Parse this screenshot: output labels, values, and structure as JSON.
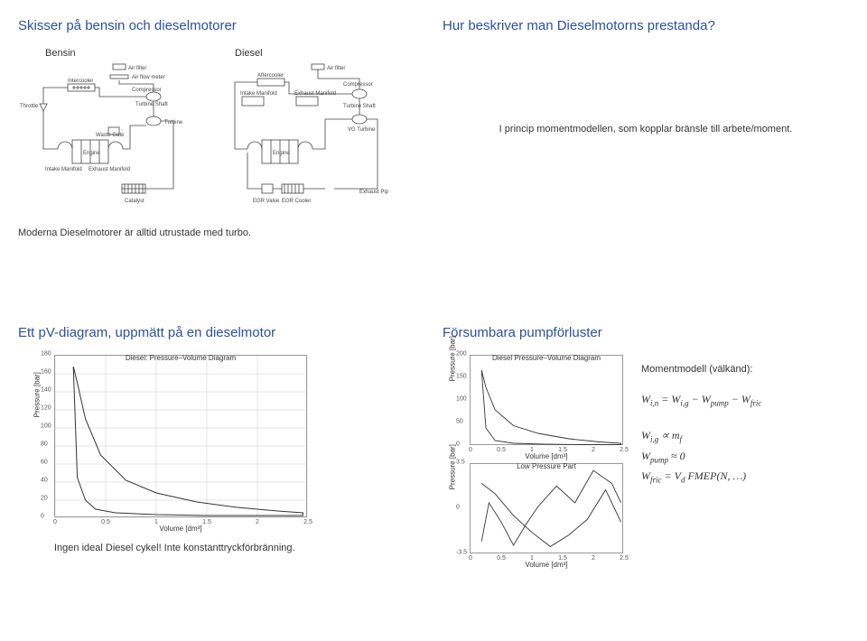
{
  "q1": {
    "title": "Skisser på bensin och dieselmotorer",
    "bensin_label": "Bensin",
    "diesel_label": "Diesel",
    "b": {
      "air_filter": "Air filter",
      "air_flow_meter": "Air flow meter",
      "intercooler": "Intercooler",
      "compressor": "Compressor",
      "throttle": "Throttle",
      "turbine_shaft": "Turbine Shaft",
      "turbine": "Turbine",
      "waste_gate": "Waste Gate",
      "engine": "Engine",
      "intake_manifold": "Intake Manifold",
      "exhaust_manifold": "Exhaust Manifold",
      "catalyst": "Catalyst"
    },
    "d": {
      "air_filter": "Air filter",
      "aftercooler": "Aftercooler",
      "compressor": "Compressor",
      "intake_manifold": "Intake Manifold",
      "exhaust_manifold": "Exhaust Manifold",
      "turbine_shaft": "Turbine Shaft",
      "vg_turbine": "VG Turbine",
      "engine": "Engine",
      "egr_valve": "EGR Valve",
      "egr_cooler": "EGR Cooler",
      "exhaust_pipe": "Exhaust Pipe"
    },
    "caption": "Moderna Dieselmotorer är alltid utrustade med turbo."
  },
  "q2": {
    "title": "Hur beskriver man Dieselmotorns prestanda?",
    "body": "I princip momentmodellen, som kopplar bränsle till arbete/moment."
  },
  "q3": {
    "title": "Ett pV-diagram, uppmätt på en dieselmotor",
    "chart": {
      "title": "Diesel: Pressure–Volume Diagram",
      "ylabel": "Pressure [bar]",
      "xlabel": "Volume [dm³]",
      "xlim": [
        0,
        2.5
      ],
      "ylim": [
        0,
        180
      ],
      "xticks": [
        0,
        0.5,
        1,
        1.5,
        2,
        2.5
      ],
      "yticks": [
        0,
        20,
        40,
        60,
        80,
        100,
        120,
        140,
        160,
        180
      ],
      "line_color": "#333333",
      "grid_color": "#cccccc",
      "bg": "#ffffff",
      "curve_upper": [
        [
          0.18,
          168
        ],
        [
          0.22,
          150
        ],
        [
          0.3,
          110
        ],
        [
          0.45,
          70
        ],
        [
          0.7,
          42
        ],
        [
          1.0,
          28
        ],
        [
          1.4,
          18
        ],
        [
          1.8,
          12
        ],
        [
          2.2,
          8
        ],
        [
          2.45,
          6
        ]
      ],
      "curve_lower": [
        [
          2.45,
          3
        ],
        [
          2.0,
          3
        ],
        [
          1.5,
          3
        ],
        [
          1.0,
          4
        ],
        [
          0.6,
          6
        ],
        [
          0.4,
          10
        ],
        [
          0.3,
          20
        ],
        [
          0.22,
          45
        ],
        [
          0.18,
          168
        ]
      ]
    },
    "caption": "Ingen ideal Diesel cykel! Inte konstanttryckförbränning."
  },
  "q4": {
    "title": "Försumbara pumpförluster",
    "chart_a": {
      "title": "Diesel Pressure–Volume Diagram",
      "ylabel": "Pressure [bar]",
      "xlabel": "Volume [dm³]",
      "xlim": [
        0,
        2.5
      ],
      "ylim": [
        0,
        200
      ],
      "xticks": [
        0,
        0.5,
        1,
        1.5,
        2,
        2.5
      ],
      "yticks": [
        0,
        50,
        100,
        150,
        200
      ],
      "line_color": "#333333",
      "curve_upper": [
        [
          0.18,
          168
        ],
        [
          0.25,
          130
        ],
        [
          0.4,
          80
        ],
        [
          0.7,
          45
        ],
        [
          1.1,
          28
        ],
        [
          1.6,
          16
        ],
        [
          2.1,
          9
        ],
        [
          2.45,
          6
        ]
      ],
      "curve_lower": [
        [
          2.45,
          3
        ],
        [
          1.8,
          3
        ],
        [
          1.2,
          4
        ],
        [
          0.7,
          6
        ],
        [
          0.4,
          12
        ],
        [
          0.25,
          40
        ],
        [
          0.18,
          168
        ]
      ]
    },
    "chart_b": {
      "title": "Low Pressure Part",
      "ylabel": "Pressure [bar]",
      "xlabel": "Volume [dm³]",
      "xlim": [
        0,
        2.5
      ],
      "ylim": [
        -3.5,
        3.5
      ],
      "xticks": [
        0,
        0.5,
        1,
        1.5,
        2,
        2.5
      ],
      "yticks": [
        -3.5,
        0,
        3.5
      ],
      "line_color": "#333333",
      "curve1": [
        [
          0.18,
          -2.5
        ],
        [
          0.3,
          0.5
        ],
        [
          0.5,
          -1.0
        ],
        [
          0.7,
          -2.8
        ],
        [
          0.9,
          -1.2
        ],
        [
          1.1,
          0.2
        ],
        [
          1.4,
          1.8
        ],
        [
          1.7,
          0.5
        ],
        [
          2.0,
          3.0
        ],
        [
          2.3,
          2.0
        ],
        [
          2.45,
          0.5
        ]
      ],
      "curve2": [
        [
          0.18,
          2.0
        ],
        [
          0.4,
          1.2
        ],
        [
          0.7,
          -0.5
        ],
        [
          1.0,
          -1.8
        ],
        [
          1.3,
          -2.9
        ],
        [
          1.6,
          -2.0
        ],
        [
          1.9,
          -0.8
        ],
        [
          2.2,
          1.5
        ],
        [
          2.45,
          -1.0
        ]
      ]
    },
    "model_heading": "Momentmodell (välkänd):",
    "eq1": "W_{i,n} = W_{i,g} − W_{pump} − W_{fric}",
    "eq2": "W_{i,g} ∝ m_f",
    "eq3": "W_{pump} ≈ 0",
    "eq4": "W_{fric} = V_d FMEP(N, …)"
  },
  "style": {
    "title_color": "#2b4fa3",
    "body_font_size": 11,
    "chart_border": "#999999"
  }
}
